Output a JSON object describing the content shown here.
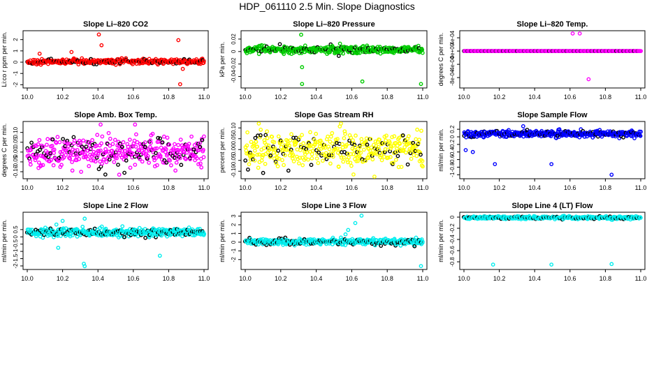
{
  "figure": {
    "title": "HDP_061110  2.5 Min. Slope Diagnostics"
  },
  "colors": {
    "axis": "#000000",
    "highlight": "#000000"
  },
  "chart_data": [
    {
      "type": "scatter",
      "title": "Slope Li–820 CO2",
      "ylabel": "Li:co r ppm per min.",
      "color": "#ff0000",
      "xlim": [
        10.0,
        11.0
      ],
      "ylim": [
        -2.1,
        2.6
      ],
      "xticks": [
        "10.0",
        "10.2",
        "10.4",
        "10.6",
        "10.8",
        "11.0"
      ],
      "yticks": [
        -2,
        -1,
        0,
        1,
        2
      ],
      "x_start": 10.0,
      "x_end": 11.0,
      "n_points": 400,
      "center": 0.05,
      "spread": 0.22,
      "black_every": 6,
      "outliers": [
        [
          10.405,
          2.45
        ],
        [
          10.42,
          1.5
        ],
        [
          10.855,
          1.95
        ],
        [
          10.865,
          -1.95
        ],
        [
          10.88,
          -0.6
        ],
        [
          10.25,
          0.9
        ],
        [
          10.07,
          0.75
        ]
      ]
    },
    {
      "type": "scatter",
      "title": "Slope Li–820 Pressure",
      "ylabel": "kPa per min.",
      "color": "#00cc00",
      "xlim": [
        10.0,
        11.0
      ],
      "ylim": [
        -0.055,
        0.03
      ],
      "xticks": [
        "10.0",
        "10.2",
        "10.4",
        "10.6",
        "10.8",
        "11.0"
      ],
      "yticks": [
        -0.04,
        -0.02,
        0.0,
        0.02
      ],
      "x_start": 10.0,
      "x_end": 11.0,
      "n_points": 400,
      "center": 0.003,
      "spread": 0.006,
      "black_every": 6,
      "outliers": [
        [
          10.315,
          0.027
        ],
        [
          10.32,
          -0.052
        ],
        [
          10.66,
          -0.048
        ],
        [
          10.99,
          -0.052
        ],
        [
          10.32,
          -0.025
        ]
      ]
    },
    {
      "type": "scatter",
      "title": "Slope Li–820 Temp.",
      "ylabel": "degrees C per min.",
      "color": "#ff00ff",
      "xlim": [
        10.0,
        11.0
      ],
      "ylim": [
        -0.00105,
        0.00055
      ],
      "xticks": [
        "10.0",
        "10.2",
        "10.4",
        "10.6",
        "10.8",
        "11.0"
      ],
      "yticks": [
        -0.0008,
        -0.0004,
        0.0,
        0.0004
      ],
      "ytick_labels": [
        "-8e-04",
        "-4e-04",
        "0e+00",
        "4e-04"
      ],
      "x_start": 10.0,
      "x_end": 11.0,
      "n_points": 400,
      "center": 0.0,
      "spread": 0.0,
      "black_every": 8,
      "outliers": [
        [
          10.615,
          0.00053
        ],
        [
          10.655,
          0.00053
        ],
        [
          10.705,
          -0.00085
        ]
      ]
    },
    {
      "type": "scatter",
      "title": "Slope Amb. Box Temp.",
      "ylabel": "degrees C per min.",
      "color": "#ff00ff",
      "xlim": [
        10.0,
        11.0
      ],
      "ylim": [
        -0.125,
        0.145
      ],
      "xticks": [
        "10.0",
        "10.2",
        "10.4",
        "10.6",
        "10.8",
        "11.0"
      ],
      "yticks": [
        -0.1,
        -0.05,
        0.0,
        0.05,
        0.1
      ],
      "ytick_labels": [
        "-0.10",
        "-0.05",
        "0.00",
        "0.05",
        "0.10"
      ],
      "x_start": 10.0,
      "x_end": 11.0,
      "n_points": 420,
      "center": 0.005,
      "spread": 0.075,
      "black_every": 5,
      "outliers": [
        [
          10.415,
          0.14
        ],
        [
          10.61,
          0.14
        ],
        [
          10.52,
          -0.115
        ]
      ]
    },
    {
      "type": "scatter",
      "title": "Slope Gas Stream RH",
      "ylabel": "percent per min.",
      "color": "#ffff00",
      "xlim": [
        10.0,
        11.0
      ],
      "ylim": [
        -0.125,
        0.12
      ],
      "xticks": [
        "10.0",
        "10.2",
        "10.4",
        "10.6",
        "10.8",
        "11.0"
      ],
      "yticks": [
        -0.1,
        -0.05,
        0.0,
        0.05,
        0.1
      ],
      "ytick_labels": [
        "-0.10",
        "-0.05",
        "0.00",
        "0.05",
        "0.10"
      ],
      "x_start": 10.0,
      "x_end": 11.0,
      "n_points": 420,
      "center": 0.0,
      "spread": 0.085,
      "black_every": 6,
      "outliers": [
        [
          10.61,
          -0.115
        ]
      ]
    },
    {
      "type": "scatter",
      "title": "Slope Sample Flow",
      "ylabel": "ml/min per min.",
      "color": "#0000ff",
      "xlim": [
        10.0,
        11.0
      ],
      "ylim": [
        -1.05,
        0.35
      ],
      "xticks": [
        "10.0",
        "10.2",
        "10.4",
        "10.6",
        "10.8",
        "11.0"
      ],
      "yticks": [
        -1.0,
        -0.8,
        -0.6,
        -0.4,
        -0.2,
        0.0,
        0.2
      ],
      "x_start": 10.0,
      "x_end": 11.0,
      "n_points": 420,
      "center": 0.08,
      "spread": 0.08,
      "black_every": 6,
      "outliers": [
        [
          10.175,
          -0.72
        ],
        [
          10.495,
          -0.72
        ],
        [
          10.835,
          -1.0
        ],
        [
          10.335,
          0.28
        ],
        [
          10.01,
          -0.35
        ],
        [
          10.05,
          -0.4
        ]
      ]
    },
    {
      "type": "scatter",
      "title": "Slope Line 2 Flow",
      "ylabel": "ml/min per min.",
      "color": "#00eeee",
      "xlim": [
        10.0,
        11.0
      ],
      "ylim": [
        -2.1,
        1.55
      ],
      "xticks": [
        "10.0",
        "10.2",
        "10.4",
        "10.6",
        "10.8",
        "11.0"
      ],
      "yticks": [
        -2.0,
        -1.5,
        -1.0,
        -0.5,
        0.0,
        0.5
      ],
      "x_start": 10.0,
      "x_end": 11.0,
      "n_points": 420,
      "center": 0.3,
      "spread": 0.3,
      "black_every": 5,
      "outliers": [
        [
          10.325,
          1.25
        ],
        [
          10.32,
          -1.85
        ],
        [
          10.325,
          -2.02
        ],
        [
          10.175,
          -0.75
        ],
        [
          10.75,
          -1.3
        ],
        [
          10.165,
          0.85
        ],
        [
          10.2,
          1.1
        ]
      ]
    },
    {
      "type": "scatter",
      "title": "Slope Line 3 Flow",
      "ylabel": "ml/min per min.",
      "color": "#00eeee",
      "xlim": [
        10.0,
        11.0
      ],
      "ylim": [
        -2.9,
        3.2
      ],
      "xticks": [
        "10.0",
        "10.2",
        "10.4",
        "10.6",
        "10.8",
        "11.0"
      ],
      "yticks": [
        -2,
        -1,
        0,
        1,
        2,
        3
      ],
      "x_start": 10.0,
      "x_end": 11.0,
      "n_points": 420,
      "center": 0.05,
      "spread": 0.35,
      "black_every": 5,
      "outliers": [
        [
          10.655,
          3.05
        ],
        [
          10.62,
          2.2
        ],
        [
          10.58,
          1.4
        ],
        [
          10.565,
          0.9
        ],
        [
          10.99,
          -2.75
        ]
      ]
    },
    {
      "type": "scatter",
      "title": "Slope Line 4 (LT) Flow",
      "ylabel": "ml/min per min.",
      "color": "#00eeee",
      "xlim": [
        10.0,
        11.0
      ],
      "ylim": [
        -0.9,
        0.05
      ],
      "xticks": [
        "10.0",
        "10.2",
        "10.4",
        "10.6",
        "10.8",
        "11.0"
      ],
      "yticks": [
        -0.8,
        -0.6,
        -0.4,
        -0.2,
        0.0
      ],
      "x_start": 10.0,
      "x_end": 11.0,
      "n_points": 400,
      "center": -0.01,
      "spread": 0.025,
      "black_every": 6,
      "outliers": [
        [
          10.165,
          -0.85
        ],
        [
          10.495,
          -0.85
        ],
        [
          10.835,
          -0.84
        ]
      ]
    }
  ]
}
